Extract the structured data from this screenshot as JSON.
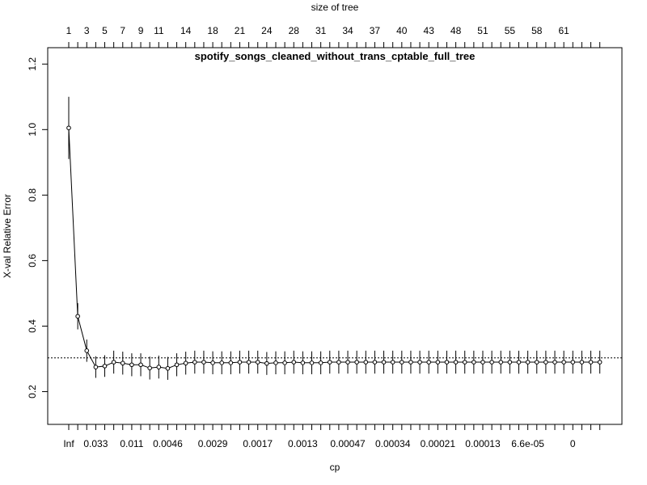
{
  "chart_data": {
    "type": "line",
    "title": "spotify_songs_cleaned_without_trans_cptable_full_tree",
    "xlabel": "cp",
    "ylabel": "X-val Relative Error",
    "top_axis_label": "size of tree",
    "ylim": [
      0.1,
      1.25
    ],
    "y_ticks": [
      "0.2",
      "0.4",
      "0.6",
      "0.8",
      "1.0",
      "1.2"
    ],
    "reference_line": 0.303,
    "point_count": 60,
    "bottom_tick_labels": [
      {
        "index": 1,
        "label": "Inf"
      },
      {
        "index": 4,
        "label": "0.033"
      },
      {
        "index": 8,
        "label": "0.011"
      },
      {
        "index": 12,
        "label": "0.0046"
      },
      {
        "index": 17,
        "label": "0.0029"
      },
      {
        "index": 22,
        "label": "0.0017"
      },
      {
        "index": 27,
        "label": "0.0013"
      },
      {
        "index": 32,
        "label": "0.00047"
      },
      {
        "index": 37,
        "label": "0.00034"
      },
      {
        "index": 42,
        "label": "0.00021"
      },
      {
        "index": 47,
        "label": "0.00013"
      },
      {
        "index": 52,
        "label": "6.6e-05"
      },
      {
        "index": 57,
        "label": "0"
      }
    ],
    "top_tick_labels": [
      {
        "index": 1,
        "label": "1"
      },
      {
        "index": 3,
        "label": "3"
      },
      {
        "index": 5,
        "label": "5"
      },
      {
        "index": 7,
        "label": "7"
      },
      {
        "index": 9,
        "label": "9"
      },
      {
        "index": 11,
        "label": "11"
      },
      {
        "index": 14,
        "label": "14"
      },
      {
        "index": 17,
        "label": "18"
      },
      {
        "index": 20,
        "label": "21"
      },
      {
        "index": 23,
        "label": "24"
      },
      {
        "index": 26,
        "label": "28"
      },
      {
        "index": 29,
        "label": "31"
      },
      {
        "index": 32,
        "label": "34"
      },
      {
        "index": 35,
        "label": "37"
      },
      {
        "index": 38,
        "label": "40"
      },
      {
        "index": 41,
        "label": "43"
      },
      {
        "index": 44,
        "label": "48"
      },
      {
        "index": 47,
        "label": "51"
      },
      {
        "index": 50,
        "label": "55"
      },
      {
        "index": 53,
        "label": "58"
      },
      {
        "index": 56,
        "label": "61"
      }
    ],
    "series": [
      {
        "y": [
          1.005,
          0.43,
          0.325,
          0.275,
          0.278,
          0.29,
          0.287,
          0.282,
          0.282,
          0.272,
          0.275,
          0.271,
          0.282,
          0.287,
          0.29,
          0.29,
          0.288,
          0.288,
          0.288,
          0.29,
          0.29,
          0.29,
          0.286,
          0.288,
          0.288,
          0.29,
          0.288,
          0.288,
          0.288,
          0.29,
          0.29,
          0.29,
          0.29,
          0.29,
          0.29,
          0.29,
          0.29,
          0.29,
          0.29,
          0.29,
          0.29,
          0.29,
          0.29,
          0.29,
          0.29,
          0.29,
          0.29,
          0.29,
          0.29,
          0.29,
          0.29,
          0.29,
          0.29,
          0.29,
          0.29,
          0.29,
          0.29,
          0.29,
          0.29,
          0.29
        ],
        "se": [
          0.095,
          0.04,
          0.034,
          0.033,
          0.033,
          0.035,
          0.035,
          0.035,
          0.035,
          0.035,
          0.035,
          0.035,
          0.035,
          0.035,
          0.035,
          0.035,
          0.035,
          0.035,
          0.035,
          0.035,
          0.035,
          0.035,
          0.035,
          0.035,
          0.035,
          0.035,
          0.035,
          0.035,
          0.035,
          0.035,
          0.035,
          0.035,
          0.035,
          0.035,
          0.035,
          0.035,
          0.035,
          0.035,
          0.035,
          0.035,
          0.035,
          0.035,
          0.035,
          0.035,
          0.035,
          0.035,
          0.035,
          0.035,
          0.035,
          0.035,
          0.035,
          0.035,
          0.035,
          0.035,
          0.035,
          0.035,
          0.035,
          0.035,
          0.035,
          0.035
        ]
      }
    ],
    "grid": false,
    "legend": "none"
  }
}
